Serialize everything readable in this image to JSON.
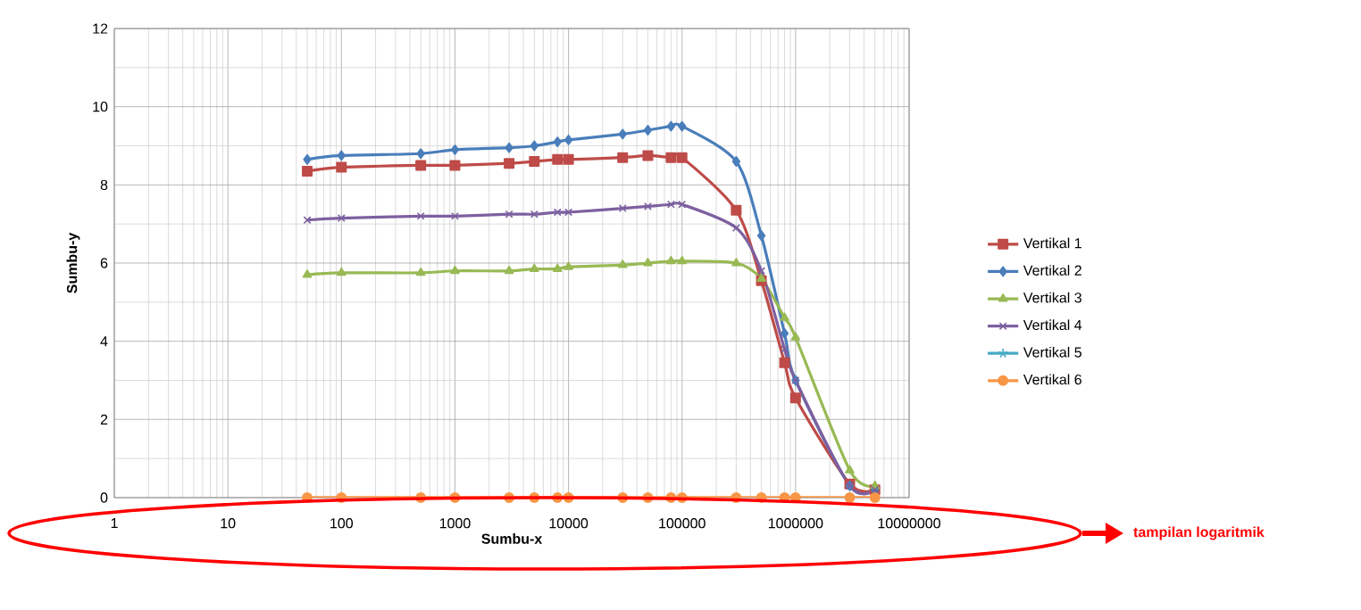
{
  "chart_data": {
    "type": "line",
    "xlabel": "Sumbu-x",
    "ylabel": "Sumbu-y",
    "log": "x",
    "grid": true,
    "legend": "right",
    "annotations": [
      "tampilan logaritmik"
    ],
    "xlim": [
      1,
      10000000
    ],
    "ylim": [
      0,
      12
    ],
    "xticks": [
      1,
      10,
      100,
      1000,
      10000,
      100000,
      1000000,
      10000000
    ],
    "yticks": [
      0,
      2,
      4,
      6,
      8,
      10,
      12
    ],
    "x": [
      50,
      100,
      500,
      1000,
      3000,
      5000,
      8000,
      10000,
      30000,
      50000,
      80000,
      100000,
      300000,
      500000,
      800000,
      1000000,
      3000000,
      5000000
    ],
    "series": [
      {
        "name": "Vertikal 1",
        "color": "#be4b48",
        "marker": "square",
        "values": [
          8.35,
          8.45,
          8.5,
          8.5,
          8.55,
          8.6,
          8.65,
          8.65,
          8.7,
          8.75,
          8.7,
          8.7,
          7.35,
          5.55,
          3.45,
          2.55,
          0.35,
          0.2
        ]
      },
      {
        "name": "Vertikal 2",
        "color": "#4a7ebb",
        "marker": "diamond",
        "values": [
          8.65,
          8.75,
          8.8,
          8.9,
          8.95,
          9.0,
          9.1,
          9.15,
          9.3,
          9.4,
          9.5,
          9.5,
          8.6,
          6.7,
          4.2,
          3.0,
          0.3,
          0.2
        ]
      },
      {
        "name": "Vertikal 3",
        "color": "#98b954",
        "marker": "triangle",
        "values": [
          5.7,
          5.75,
          5.75,
          5.8,
          5.8,
          5.85,
          5.85,
          5.9,
          5.95,
          6.0,
          6.05,
          6.05,
          6.0,
          5.6,
          4.6,
          4.1,
          0.7,
          0.3
        ]
      },
      {
        "name": "Vertikal 4",
        "color": "#7d60a0",
        "marker": "cross",
        "values": [
          7.1,
          7.15,
          7.2,
          7.2,
          7.25,
          7.25,
          7.3,
          7.3,
          7.4,
          7.45,
          7.5,
          7.5,
          6.9,
          5.8,
          3.8,
          3.0,
          0.3,
          0.2
        ]
      },
      {
        "name": "Vertikal 5",
        "color": "#46aac5",
        "marker": "star",
        "values": [
          null,
          null,
          null,
          null,
          null,
          null,
          null,
          null,
          null,
          null,
          null,
          null,
          null,
          null,
          null,
          null,
          null,
          null
        ]
      },
      {
        "name": "Vertikal 6",
        "color": "#f79646",
        "marker": "circle",
        "values": [
          0,
          0,
          0,
          0,
          0,
          0,
          0,
          0,
          0,
          0,
          0,
          0,
          0,
          0,
          0,
          0,
          0,
          0
        ]
      }
    ]
  }
}
